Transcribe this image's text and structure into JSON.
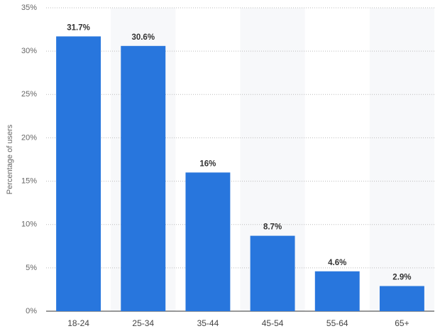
{
  "chart_data": {
    "type": "bar",
    "y_label": "Percentage of users",
    "categories": [
      "18-24",
      "25-34",
      "35-44",
      "45-54",
      "55-64",
      "65+"
    ],
    "values": [
      31.7,
      30.6,
      16,
      8.7,
      4.6,
      2.9
    ],
    "value_labels": [
      "31.7%",
      "30.6%",
      "16%",
      "8.7%",
      "4.6%",
      "2.9%"
    ],
    "color": "#2876dd",
    "ylim": [
      0,
      35
    ],
    "yticks": [
      {
        "value": 0,
        "label": "0%"
      },
      {
        "value": 5,
        "label": "5%"
      },
      {
        "value": 10,
        "label": "10%"
      },
      {
        "value": 15,
        "label": "15%"
      },
      {
        "value": 20,
        "label": "20%"
      },
      {
        "value": 25,
        "label": "25%"
      },
      {
        "value": 30,
        "label": "30%"
      },
      {
        "value": 35,
        "label": "35%"
      }
    ],
    "grid": true
  }
}
